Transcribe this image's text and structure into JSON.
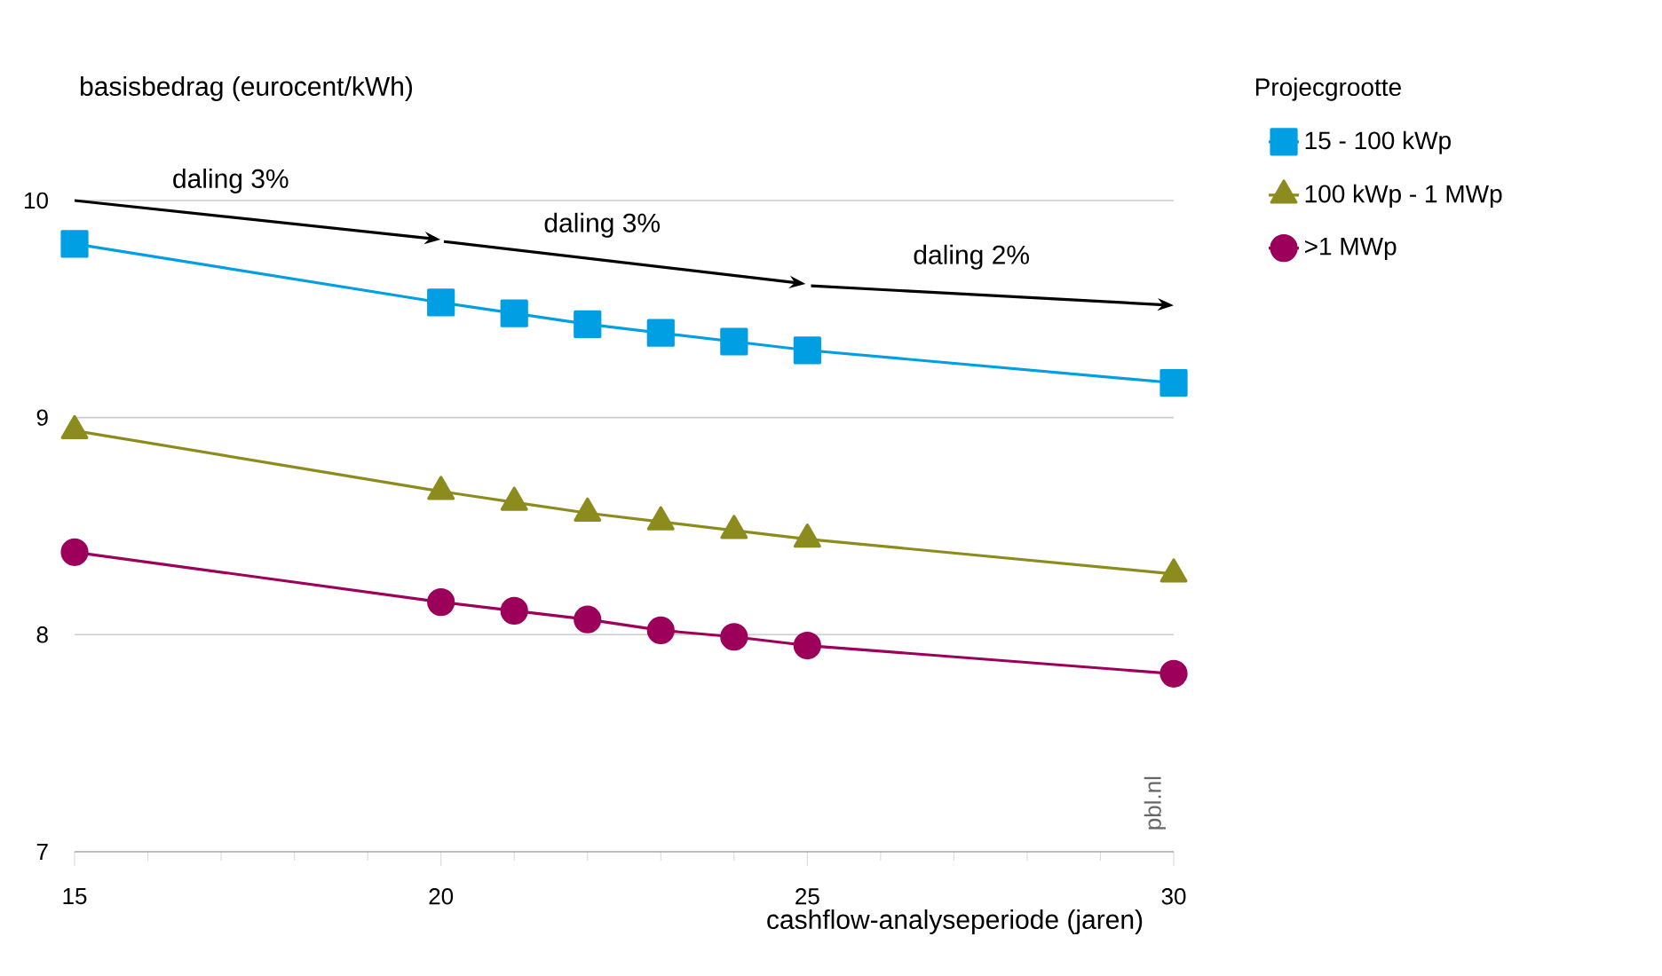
{
  "chart_data": {
    "type": "line",
    "ylabel": "basisbedrag (eurocent/kWh)",
    "xlabel": "cashflow-analyseperiode (jaren)",
    "legend_title": "Projecgrootte",
    "x": [
      15,
      20,
      21,
      22,
      23,
      24,
      25,
      30
    ],
    "series": [
      {
        "name": "15 - 100 kWp",
        "color": "#009fe3",
        "marker": "square",
        "values": [
          9.8,
          9.53,
          9.48,
          9.43,
          9.39,
          9.35,
          9.31,
          9.16
        ]
      },
      {
        "name": "100 kWp - 1 MWp",
        "color": "#8c8c1e",
        "marker": "triangle",
        "values": [
          8.94,
          8.66,
          8.61,
          8.56,
          8.52,
          8.48,
          8.44,
          8.28
        ]
      },
      {
        "name": ">1 MWp",
        "color": "#9c005a",
        "marker": "circle",
        "values": [
          8.38,
          8.15,
          8.11,
          8.07,
          8.02,
          7.99,
          7.95,
          7.82
        ]
      }
    ],
    "annotations": [
      "daling 3%",
      "daling 3%",
      "daling 2%",
      "pbl.nl"
    ],
    "xlim": [
      15,
      30
    ],
    "ylim": [
      7,
      10
    ],
    "xticks": [
      15,
      20,
      25,
      30
    ],
    "yticks": [
      7,
      8,
      9,
      10
    ],
    "grid": "y",
    "legend": "right",
    "line_style": "solid"
  }
}
